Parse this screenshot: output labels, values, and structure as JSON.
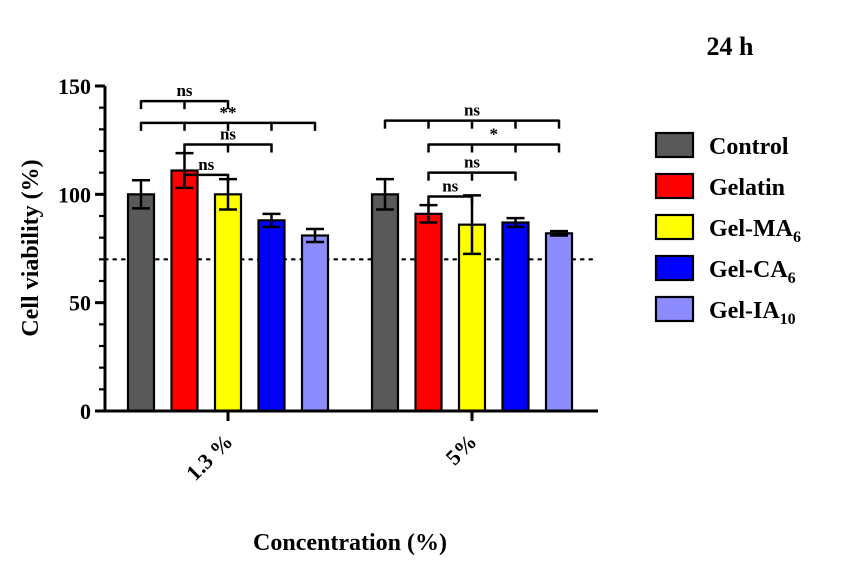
{
  "chart_data": {
    "type": "bar",
    "title": "24 h",
    "xlabel": "Concentration (%)",
    "ylabel": "Cell viability (%)",
    "ylim": [
      0,
      150
    ],
    "yticks": [
      "0",
      "50",
      "100",
      "150"
    ],
    "categories": [
      "1.3 %",
      "5%"
    ],
    "reference_line": 70,
    "series": [
      {
        "name": "Control",
        "color": "#595959",
        "values": [
          100,
          100
        ],
        "errors": [
          6.5,
          7
        ]
      },
      {
        "name": "Gelatin",
        "color": "#ff0000",
        "values": [
          111,
          91
        ],
        "errors": [
          8,
          4
        ]
      },
      {
        "name": "Gel-MA",
        "subscript": "6",
        "color": "#ffff00",
        "values": [
          100,
          86
        ],
        "errors": [
          7,
          13.5
        ]
      },
      {
        "name": "Gel-CA",
        "subscript": "6",
        "color": "#0000ff",
        "values": [
          88,
          87
        ],
        "errors": [
          3,
          2
        ]
      },
      {
        "name": "Gel-IA",
        "subscript": "10",
        "color": "#8c8cff",
        "values": [
          81,
          82
        ],
        "errors": [
          3,
          1
        ]
      }
    ],
    "significance": [
      {
        "group": "1.3 %",
        "from": "Control",
        "to": [
          "Gelatin",
          "Gel-MA"
        ],
        "label": "ns",
        "level": 143
      },
      {
        "group": "1.3 %",
        "from": "Control",
        "to": [
          "Gelatin",
          "Gel-MA",
          "Gel-CA",
          "Gel-IA"
        ],
        "label": "**",
        "level": 133
      },
      {
        "group": "1.3 %",
        "from": "Gelatin",
        "to": [
          "Gel-MA",
          "Gel-CA"
        ],
        "label": "ns",
        "level": 123
      },
      {
        "group": "1.3 %",
        "from": "Gelatin",
        "to": [
          "Gel-MA"
        ],
        "label": "ns",
        "level": 109
      },
      {
        "group": "5%",
        "from": "Control",
        "to": [
          "Gelatin",
          "Gel-MA",
          "Gel-CA",
          "Gel-IA"
        ],
        "label": "ns",
        "level": 134
      },
      {
        "group": "5%",
        "from": "Gelatin",
        "to": [
          "Gel-MA",
          "Gel-CA",
          "Gel-IA"
        ],
        "label": "*",
        "level": 123
      },
      {
        "group": "5%",
        "from": "Gelatin",
        "to": [
          "Gel-MA",
          "Gel-CA"
        ],
        "label": "ns",
        "level": 110
      },
      {
        "group": "5%",
        "from": "Gelatin",
        "to": [
          "Gel-MA"
        ],
        "label": "ns",
        "level": 99
      }
    ]
  }
}
